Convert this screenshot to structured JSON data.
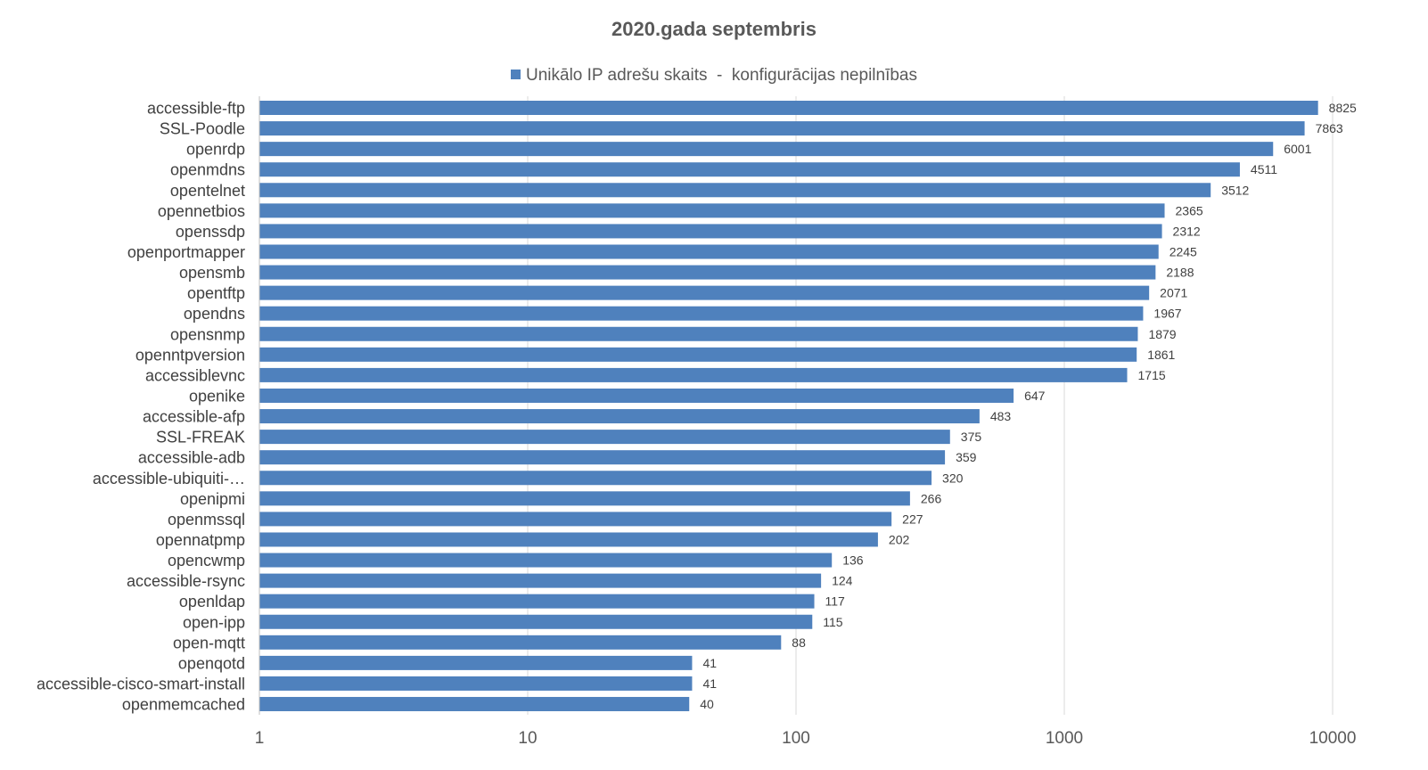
{
  "chart_data": {
    "type": "bar",
    "orientation": "horizontal",
    "title": "2020.gada septembris",
    "legend_position": "top",
    "series": [
      {
        "name": "Unikālo IP adrešu skaits  -  konfigurācijas nepilnības",
        "color": "#4f81bd",
        "values": [
          8825,
          7863,
          6001,
          4511,
          3512,
          2365,
          2312,
          2245,
          2188,
          2071,
          1967,
          1879,
          1861,
          1715,
          647,
          483,
          375,
          359,
          320,
          266,
          227,
          202,
          136,
          124,
          117,
          115,
          88,
          41,
          41,
          40
        ]
      }
    ],
    "categories": [
      "accessible-ftp",
      "SSL-Poodle",
      "openrdp",
      "openmdns",
      "opentelnet",
      "opennetbios",
      "openssdp",
      "openportmapper",
      "opensmb",
      "opentftp",
      "opendns",
      "opensnmp",
      "openntpversion",
      "accessiblevnc",
      "openike",
      "accessible-afp",
      "SSL-FREAK",
      "accessible-adb",
      "accessible-ubiquiti-…",
      "openipmi",
      "openmssql",
      "opennatpmp",
      "opencwmp",
      "accessible-rsync",
      "openldap",
      "open-ipp",
      "open-mqtt",
      "openqotd",
      "accessible-cisco-smart-install",
      "openmemcached"
    ],
    "x_scale": "log",
    "x_range": [
      1,
      10000
    ],
    "x_ticks": [
      "1",
      "10",
      "100",
      "1000",
      "10000"
    ],
    "gridlines": true,
    "data_labels": true
  }
}
